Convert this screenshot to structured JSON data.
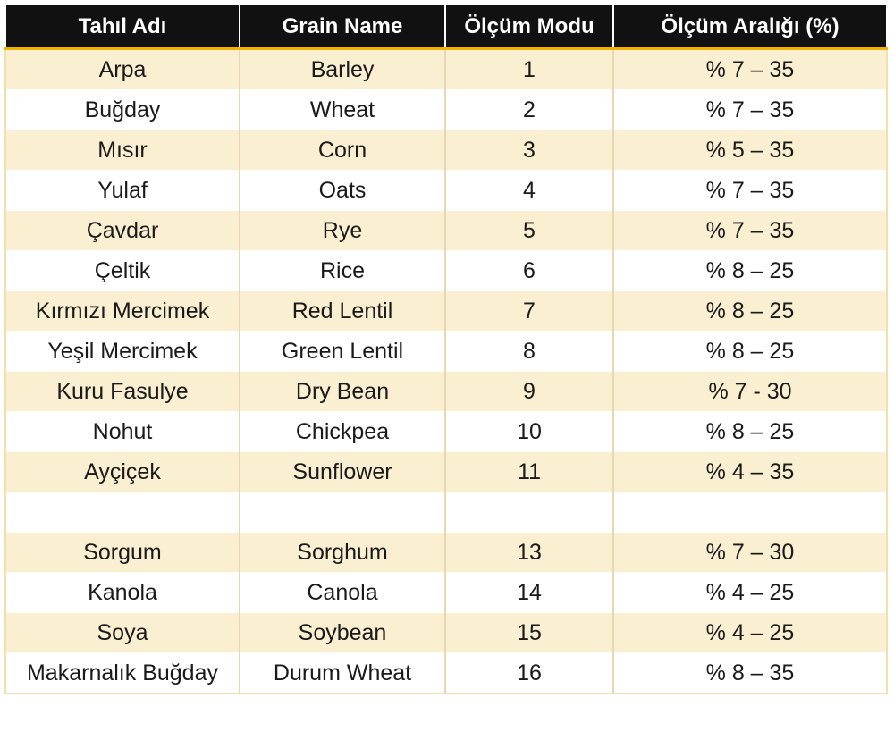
{
  "table": {
    "headers": [
      "Tahıl Adı",
      "Grain Name",
      "Ölçüm Modu",
      "Ölçüm Aralığı (%)"
    ],
    "rows": [
      [
        "Arpa",
        "Barley",
        "1",
        "% 7 – 35"
      ],
      [
        "Buğday",
        "Wheat",
        "2",
        "% 7 – 35"
      ],
      [
        "Mısır",
        "Corn",
        "3",
        "% 5 – 35"
      ],
      [
        "Yulaf",
        "Oats",
        "4",
        "% 7 – 35"
      ],
      [
        "Çavdar",
        "Rye",
        "5",
        "% 7 – 35"
      ],
      [
        "Çeltik",
        "Rice",
        "6",
        "% 8 – 25"
      ],
      [
        "Kırmızı Mercimek",
        "Red Lentil",
        "7",
        "% 8 – 25"
      ],
      [
        "Yeşil Mercimek",
        "Green Lentil",
        "8",
        "% 8 – 25"
      ],
      [
        "Kuru Fasulye",
        "Dry Bean",
        "9",
        "% 7 - 30"
      ],
      [
        "Nohut",
        "Chickpea",
        "10",
        "% 8 – 25"
      ],
      [
        "Ayçiçek",
        "Sunflower",
        "11",
        "% 4 – 35"
      ],
      [
        "",
        "",
        "",
        ""
      ],
      [
        "Sorgum",
        "Sorghum",
        "13",
        "% 7 – 30"
      ],
      [
        "Kanola",
        "Canola",
        "14",
        "% 4 – 25"
      ],
      [
        "Soya",
        "Soybean",
        "15",
        "% 4 – 25"
      ],
      [
        "Makarnalık Buğday",
        "Durum Wheat",
        "16",
        "% 8 – 35"
      ]
    ]
  },
  "colors": {
    "header_background": "#111111",
    "header_text": "#ffffff",
    "accent": "#f0b400",
    "row_stripe": "#fbefd2",
    "row_plain": "#ffffff"
  }
}
